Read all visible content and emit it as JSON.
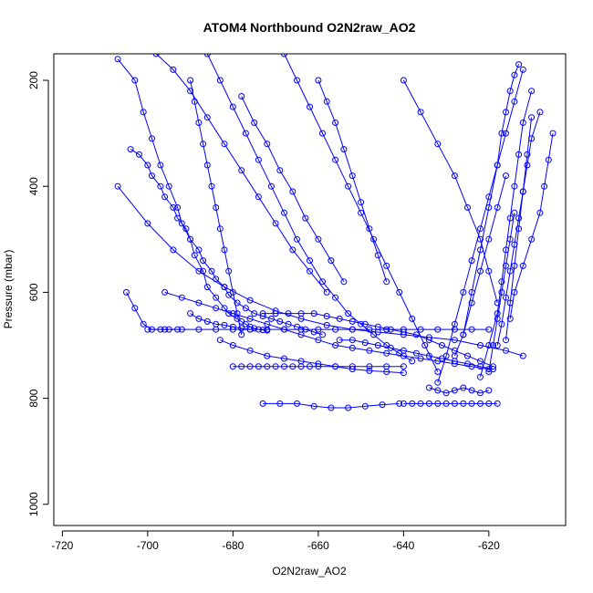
{
  "chart_data": {
    "type": "scatter",
    "title": "ATOM4 Northbound O2N2raw_AO2",
    "xlabel": "O2N2raw_AO2",
    "ylabel": "Pressure (mbar)",
    "xlim": [
      -722,
      -602
    ],
    "ylim": [
      1040,
      150
    ],
    "y_reversed": true,
    "xticks": [
      -720,
      -700,
      -680,
      -660,
      -640,
      -620
    ],
    "yticks": [
      200,
      400,
      600,
      800,
      1000
    ],
    "grid": false,
    "legend": "none",
    "color": "#0000ff",
    "marker": "open-circle",
    "series": [
      {
        "x": [
          -707,
          -703,
          -701,
          -699,
          -697,
          -695,
          -693,
          -692,
          -690,
          -689,
          -687,
          -686,
          -684,
          -682,
          -681,
          -679,
          -678,
          -677,
          -676,
          -675,
          -674,
          -673,
          -672
        ],
        "y": [
          160,
          200,
          260,
          310,
          360,
          400,
          440,
          470,
          500,
          530,
          560,
          590,
          610,
          630,
          640,
          650,
          655,
          660,
          665,
          668,
          670,
          671,
          672
        ]
      },
      {
        "x": [
          -707,
          -700,
          -694,
          -688,
          -682,
          -676,
          -670,
          -664,
          -658,
          -652,
          -646,
          -640,
          -634,
          -628,
          -622,
          -616,
          -612
        ],
        "y": [
          400,
          470,
          520,
          560,
          590,
          615,
          635,
          650,
          662,
          670,
          675,
          680,
          685,
          690,
          700,
          710,
          720
        ]
      },
      {
        "x": [
          -704,
          -702,
          -700,
          -699,
          -697,
          -696,
          -694,
          -693,
          -691,
          -690,
          -688,
          -687,
          -685,
          -684,
          -682,
          -681,
          -679,
          -677,
          -675,
          -673,
          -671,
          -669,
          -667,
          -665,
          -663,
          -661,
          -659
        ],
        "y": [
          330,
          340,
          360,
          380,
          400,
          420,
          440,
          460,
          480,
          500,
          520,
          540,
          560,
          575,
          590,
          605,
          620,
          630,
          640,
          645,
          650,
          655,
          660,
          665,
          670,
          675,
          680
        ]
      },
      {
        "x": [
          -700,
          -696,
          -692,
          -688,
          -684,
          -680,
          -676,
          -672,
          -668,
          -664,
          -660,
          -656,
          -652,
          -648,
          -644,
          -640,
          -636,
          -632,
          -628,
          -624,
          -620
        ],
        "y": [
          670,
          670,
          670,
          670,
          670,
          670,
          670,
          670,
          670,
          670,
          670,
          670,
          670,
          670,
          670,
          670,
          670,
          670,
          670,
          670,
          670
        ]
      },
      {
        "x": [
          -698,
          -694,
          -690,
          -686,
          -682,
          -678,
          -674,
          -670,
          -666,
          -662,
          -658
        ],
        "y": [
          150,
          180,
          220,
          270,
          320,
          370,
          420,
          470,
          520,
          560,
          600
        ]
      },
      {
        "x": [
          -696,
          -692,
          -688,
          -684,
          -680,
          -676,
          -672,
          -668,
          -664,
          -660,
          -656,
          -652,
          -648,
          -644,
          -640,
          -636,
          -632,
          -628,
          -624,
          -620
        ],
        "y": [
          600,
          610,
          620,
          630,
          640,
          650,
          660,
          670,
          680,
          690,
          700,
          705,
          710,
          715,
          720,
          725,
          730,
          735,
          740,
          745
        ]
      },
      {
        "x": [
          -690,
          -689,
          -688,
          -687,
          -686,
          -685,
          -684,
          -683,
          -682,
          -681,
          -680,
          -679,
          -678
        ],
        "y": [
          200,
          240,
          280,
          320,
          360,
          400,
          440,
          480,
          520,
          560,
          600,
          640,
          680
        ]
      },
      {
        "x": [
          -686,
          -683,
          -680,
          -677,
          -674,
          -671,
          -668,
          -665,
          -662,
          -659,
          -656,
          -653,
          -650,
          -647,
          -644,
          -641,
          -638
        ],
        "y": [
          150,
          200,
          250,
          300,
          350,
          400,
          450,
          500,
          540,
          580,
          610,
          640,
          660,
          680,
          700,
          715,
          730
        ]
      },
      {
        "x": [
          -683,
          -680,
          -676,
          -672,
          -668,
          -664,
          -660,
          -656,
          -652,
          -648,
          -644,
          -640
        ],
        "y": [
          690,
          700,
          710,
          720,
          725,
          730,
          735,
          740,
          745,
          748,
          750,
          752
        ]
      },
      {
        "x": [
          -680,
          -678,
          -676,
          -674,
          -672,
          -670,
          -668,
          -666,
          -664,
          -662,
          -660,
          -656,
          -652,
          -648,
          -644,
          -640
        ],
        "y": [
          740,
          740,
          740,
          740,
          740,
          740,
          740,
          740,
          740,
          740,
          740,
          740,
          740,
          740,
          740,
          740
        ]
      },
      {
        "x": [
          -678,
          -675,
          -672,
          -669,
          -666,
          -663,
          -660,
          -657,
          -654
        ],
        "y": [
          230,
          280,
          320,
          370,
          410,
          460,
          500,
          540,
          580
        ]
      },
      {
        "x": [
          -673,
          -670,
          -667,
          -664,
          -661,
          -658,
          -655,
          -652,
          -649,
          -646,
          -643,
          -640,
          -637,
          -634,
          -631,
          -628,
          -625,
          -622,
          -619
        ],
        "y": [
          640,
          640,
          640,
          640,
          640,
          645,
          650,
          655,
          660,
          665,
          670,
          675,
          680,
          690,
          700,
          710,
          720,
          730,
          740
        ]
      },
      {
        "x": [
          -673,
          -669,
          -665,
          -661,
          -657,
          -653,
          -649,
          -645,
          -641
        ],
        "y": [
          810,
          810,
          810,
          815,
          818,
          818,
          815,
          812,
          810
        ]
      },
      {
        "x": [
          -668,
          -665,
          -662,
          -659,
          -656,
          -653,
          -650,
          -647,
          -644,
          -641,
          -638,
          -635,
          -632
        ],
        "y": [
          150,
          200,
          250,
          300,
          350,
          400,
          450,
          500,
          550,
          600,
          650,
          700,
          750
        ]
      },
      {
        "x": [
          -660,
          -658,
          -656,
          -654,
          -652,
          -650,
          -648,
          -646,
          -644
        ],
        "y": [
          200,
          240,
          280,
          330,
          380,
          430,
          480,
          530,
          580
        ]
      },
      {
        "x": [
          -655,
          -652,
          -649,
          -646,
          -643,
          -640,
          -637,
          -634,
          -631,
          -628,
          -625,
          -622,
          -619
        ],
        "y": [
          690,
          690,
          695,
          700,
          705,
          710,
          715,
          720,
          725,
          730,
          735,
          740,
          745
        ]
      },
      {
        "x": [
          -640,
          -636,
          -632,
          -628,
          -625,
          -622,
          -620,
          -618
        ],
        "y": [
          200,
          260,
          320,
          380,
          440,
          500,
          560,
          620
        ]
      },
      {
        "x": [
          -640,
          -638,
          -636,
          -634,
          -632,
          -630,
          -628,
          -626,
          -624,
          -622,
          -620,
          -618
        ],
        "y": [
          810,
          810,
          810,
          810,
          810,
          810,
          810,
          810,
          810,
          810,
          810,
          810
        ]
      },
      {
        "x": [
          -634,
          -632,
          -630,
          -628,
          -626,
          -624,
          -622,
          -620
        ],
        "y": [
          780,
          785,
          790,
          785,
          780,
          785,
          790,
          785
        ]
      },
      {
        "x": [
          -632,
          -630,
          -628,
          -626,
          -624,
          -622,
          -620,
          -618,
          -616,
          -614,
          -612
        ],
        "y": [
          770,
          720,
          660,
          600,
          540,
          480,
          420,
          360,
          300,
          240,
          180
        ]
      },
      {
        "x": [
          -628,
          -626,
          -624,
          -622,
          -620,
          -618,
          -616
        ],
        "y": [
          720,
          680,
          620,
          560,
          500,
          440,
          380
        ]
      },
      {
        "x": [
          -626,
          -624,
          -622,
          -620,
          -618,
          -617,
          -616,
          -615,
          -614,
          -613
        ],
        "y": [
          680,
          600,
          520,
          440,
          360,
          300,
          260,
          220,
          190,
          170
        ]
      },
      {
        "x": [
          -622,
          -620,
          -618,
          -617,
          -616,
          -615,
          -614,
          -613,
          -612,
          -610
        ],
        "y": [
          760,
          700,
          640,
          580,
          520,
          460,
          400,
          340,
          280,
          220
        ]
      },
      {
        "x": [
          -620,
          -619,
          -618,
          -617,
          -616,
          -615,
          -614
        ],
        "y": [
          750,
          700,
          650,
          600,
          550,
          500,
          450
        ]
      },
      {
        "x": [
          -618,
          -617,
          -616,
          -615,
          -614,
          -613,
          -612,
          -611,
          -610,
          -608
        ],
        "y": [
          700,
          660,
          610,
          560,
          510,
          460,
          410,
          360,
          310,
          260
        ]
      },
      {
        "x": [
          -616,
          -615,
          -614,
          -613,
          -612,
          -611,
          -610
        ],
        "y": [
          690,
          620,
          550,
          480,
          410,
          340,
          270
        ]
      },
      {
        "x": [
          -615,
          -614,
          -612,
          -610,
          -608,
          -607,
          -606,
          -605
        ],
        "y": [
          650,
          600,
          550,
          500,
          450,
          400,
          350,
          300
        ]
      },
      {
        "x": [
          -690,
          -688,
          -686,
          -684,
          -682,
          -680,
          -678,
          -676
        ],
        "y": [
          640,
          650,
          655,
          660,
          662,
          665,
          668,
          670
        ]
      },
      {
        "x": [
          -705,
          -703,
          -701,
          -699,
          -697,
          -695,
          -693
        ],
        "y": [
          600,
          630,
          660,
          670,
          670,
          670,
          670
        ]
      }
    ]
  }
}
